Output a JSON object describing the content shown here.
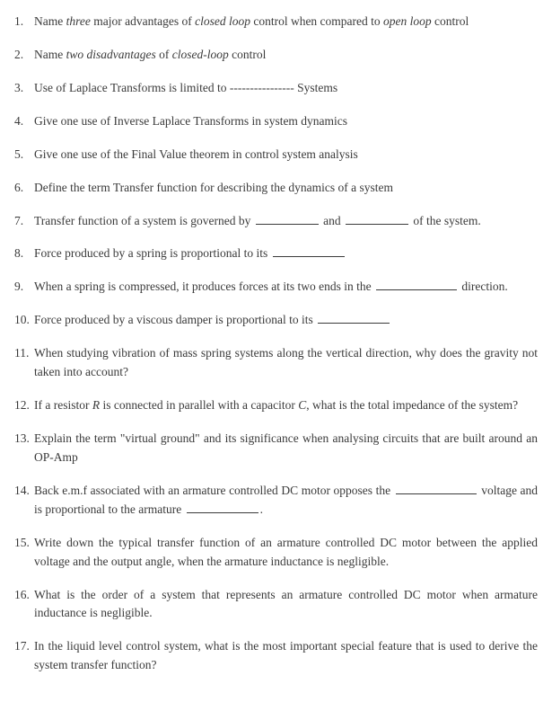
{
  "questions": {
    "q1_a": "Name ",
    "q1_b": " major advantages of ",
    "q1_c": " control when compared to ",
    "q1_d": " control",
    "q1_it1": "three",
    "q1_it2": "closed loop",
    "q1_it3": "open loop",
    "q2_a": "Name ",
    "q2_b": " of ",
    "q2_c": " control",
    "q2_it1": "two disadvantages",
    "q2_it2": "closed-loop",
    "q3_a": "Use of Laplace Transforms is limited to  ",
    "q3_dash": "----------------",
    "q3_b": "  Systems",
    "q4": "Give one use of Inverse Laplace Transforms in system dynamics",
    "q5": "Give one use of the Final Value theorem in control system analysis",
    "q6": "Define the term Transfer function for describing the dynamics of a system",
    "q7_a": "Transfer function of a system is governed by ",
    "q7_b": " and ",
    "q7_c": " of the system.",
    "q8_a": "Force produced by a spring is proportional to its ",
    "q9_a": "When a spring is compressed, it produces forces at its two ends in the ",
    "q9_b": " direction.",
    "q10_a": "Force produced by a viscous damper is proportional to its ",
    "q11": "When studying vibration of mass spring systems along the vertical direction, why does the gravity not taken into account?",
    "q12_a": "If a resistor ",
    "q12_b": " is connected in parallel with a capacitor ",
    "q12_c": ", what is the total impedance of the system?",
    "q12_R": "R",
    "q12_C": "C",
    "q13": "Explain the term \"virtual ground\" and its significance when analysing circuits that are built around an OP-Amp",
    "q14_a": "Back e.m.f associated with an armature controlled DC motor opposes the ",
    "q14_b": " voltage and is proportional to the armature ",
    "q14_c": ".",
    "q15": "Write down the typical transfer function of an armature controlled DC motor between the applied voltage and the output angle, when the armature inductance is negligible.",
    "q16": "What is the order of a system that represents an armature controlled DC motor when armature inductance is negligible.",
    "q17": "In the liquid level control system, what is the most important special feature that is used to derive the system transfer function?"
  }
}
